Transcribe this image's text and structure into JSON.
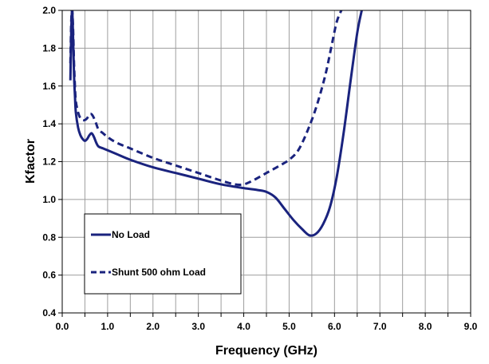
{
  "chart_data": {
    "type": "line",
    "title": "",
    "xlabel": "Frequency (GHz)",
    "ylabel": "Kfactor",
    "xlim": [
      0,
      9
    ],
    "ylim": [
      0.4,
      2.0
    ],
    "x_ticks": [
      "0.0",
      "1.0",
      "2.0",
      "3.0",
      "4.0",
      "5.0",
      "6.0",
      "7.0",
      "8.0",
      "9.0"
    ],
    "y_ticks": [
      "0.4",
      "0.6",
      "0.8",
      "1.0",
      "1.2",
      "1.4",
      "1.6",
      "1.8",
      "2.0"
    ],
    "grid": true,
    "legend_position": "bottom-left",
    "colors": {
      "line": "#1a237e"
    },
    "series": [
      {
        "name": "No Load",
        "style": "solid",
        "x": [
          0.18,
          0.2,
          0.22,
          0.24,
          0.26,
          0.28,
          0.3,
          0.35,
          0.4,
          0.45,
          0.5,
          0.55,
          0.6,
          0.65,
          0.7,
          0.75,
          0.8,
          0.9,
          1.0,
          1.2,
          1.5,
          2.0,
          2.5,
          3.0,
          3.5,
          4.0,
          4.3,
          4.5,
          4.7,
          4.9,
          5.1,
          5.3,
          5.45,
          5.6,
          5.75,
          5.9,
          6.05,
          6.2,
          6.35,
          6.5,
          6.6
        ],
        "values": [
          1.63,
          1.9,
          2.0,
          1.85,
          1.66,
          1.55,
          1.46,
          1.38,
          1.34,
          1.32,
          1.31,
          1.32,
          1.34,
          1.35,
          1.33,
          1.3,
          1.28,
          1.27,
          1.26,
          1.24,
          1.21,
          1.17,
          1.14,
          1.11,
          1.08,
          1.06,
          1.05,
          1.04,
          1.01,
          0.95,
          0.89,
          0.84,
          0.81,
          0.82,
          0.87,
          0.96,
          1.12,
          1.35,
          1.62,
          1.88,
          2.0
        ]
      },
      {
        "name": "Shunt 500 ohm Load",
        "style": "dashed",
        "x": [
          0.18,
          0.2,
          0.22,
          0.24,
          0.26,
          0.28,
          0.3,
          0.35,
          0.4,
          0.45,
          0.5,
          0.55,
          0.6,
          0.65,
          0.7,
          0.75,
          0.8,
          0.9,
          1.0,
          1.2,
          1.5,
          2.0,
          2.5,
          3.0,
          3.5,
          3.8,
          4.0,
          4.2,
          4.5,
          4.8,
          5.0,
          5.2,
          5.4,
          5.6,
          5.8,
          5.95,
          6.05,
          6.15
        ],
        "values": [
          1.72,
          1.95,
          2.0,
          1.9,
          1.72,
          1.6,
          1.52,
          1.46,
          1.43,
          1.42,
          1.42,
          1.43,
          1.45,
          1.45,
          1.43,
          1.4,
          1.37,
          1.35,
          1.33,
          1.3,
          1.27,
          1.22,
          1.18,
          1.14,
          1.1,
          1.08,
          1.08,
          1.1,
          1.14,
          1.18,
          1.21,
          1.26,
          1.36,
          1.49,
          1.66,
          1.83,
          1.94,
          2.0
        ]
      }
    ]
  }
}
